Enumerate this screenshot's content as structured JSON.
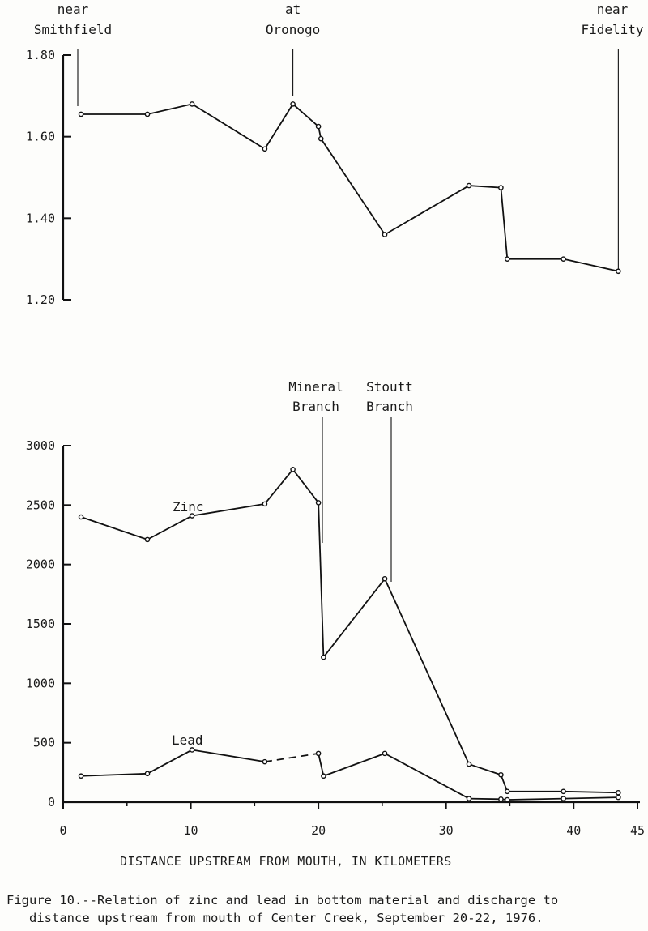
{
  "chart_data": [
    {
      "type": "line",
      "title": "",
      "xlabel": "",
      "ylabel": "",
      "xlim": [
        0,
        45
      ],
      "ylim": [
        1.2,
        1.8
      ],
      "yticks": [
        "1.20",
        "1.40",
        "1.60",
        "1.80"
      ],
      "x": [
        1.4,
        6.6,
        10.1,
        15.8,
        18.0,
        20.0,
        20.2,
        25.2,
        31.8,
        34.3,
        34.8,
        39.2,
        43.5
      ],
      "series": [
        {
          "name": "",
          "values": [
            1.655,
            1.655,
            1.68,
            1.57,
            1.68,
            1.625,
            1.595,
            1.36,
            1.48,
            1.475,
            1.3,
            1.3,
            1.27
          ]
        }
      ],
      "annotations": [
        {
          "lines": [
            "near",
            "Smithfield"
          ],
          "x": 1.4
        },
        {
          "lines": [
            "at",
            "Oronogo"
          ],
          "x": 18.0
        },
        {
          "lines": [
            "near",
            "Fidelity"
          ],
          "x": 43.5
        }
      ]
    },
    {
      "type": "line",
      "title": "",
      "xlabel": "DISTANCE UPSTREAM FROM MOUTH, IN KILOMETERS",
      "ylabel": "",
      "xlim": [
        0,
        45
      ],
      "ylim": [
        0,
        3000
      ],
      "xticks": [
        "0",
        "10",
        "20",
        "30",
        "40",
        "45"
      ],
      "yticks": [
        "0",
        "500",
        "1000",
        "1500",
        "2000",
        "2500",
        "3000"
      ],
      "series": [
        {
          "name": "Zinc",
          "x": [
            1.4,
            6.6,
            10.1,
            15.8,
            18.0,
            20.0,
            20.4,
            25.2,
            31.8,
            34.3,
            34.8,
            39.2,
            43.5
          ],
          "values": [
            2400,
            2210,
            2410,
            2510,
            2800,
            2520,
            1220,
            1880,
            320,
            230,
            90,
            90,
            80
          ]
        },
        {
          "name": "Lead",
          "x": [
            1.4,
            6.6,
            10.1,
            15.8,
            20.0,
            20.4,
            25.2,
            31.8,
            34.3,
            34.8,
            39.2,
            43.5
          ],
          "values": [
            220,
            240,
            440,
            340,
            410,
            220,
            410,
            30,
            25,
            20,
            30,
            40
          ],
          "dashed_segment": [
            15.8,
            20.0
          ]
        }
      ],
      "annotations": [
        {
          "lines": [
            "Mineral",
            "Branch"
          ],
          "x": 20.2
        },
        {
          "lines": [
            "Stoutt",
            "Branch"
          ],
          "x": 25.2
        }
      ]
    }
  ],
  "caption": {
    "line1": "Figure 10.--Relation of zinc and lead in bottom material and discharge to",
    "line2": "distance upstream from mouth of Center Creek, September 20-22, 1976."
  }
}
